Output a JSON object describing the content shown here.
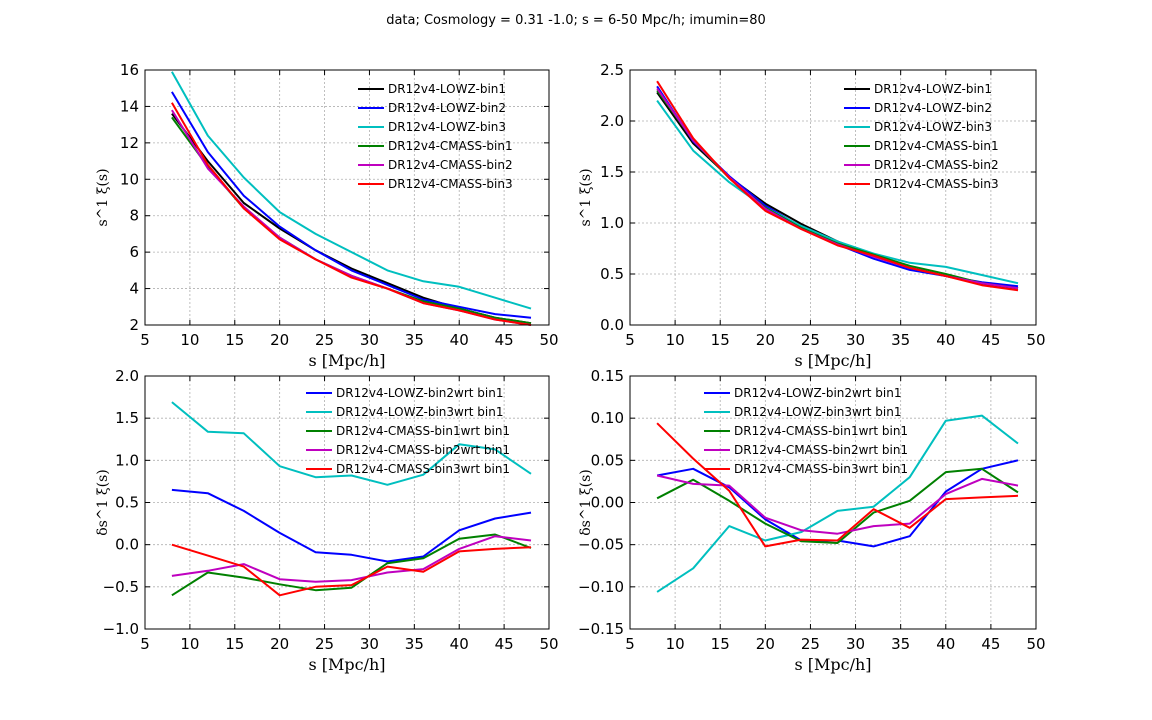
{
  "figure_title": "data; Cosmology = 0.31 -1.0; s = 6-50 Mpc/h; imumin=80",
  "chart_data": [
    {
      "type": "line",
      "panel": "top-left",
      "title": "",
      "xlabel": "s [Mpc/h]",
      "ylabel": "s^1 ξ(s)",
      "xlim": [
        5,
        50
      ],
      "ylim": [
        2,
        16
      ],
      "xticks": [
        "5",
        "10",
        "15",
        "20",
        "25",
        "30",
        "35",
        "40",
        "45",
        "50"
      ],
      "yticks": [
        "2",
        "4",
        "6",
        "8",
        "10",
        "12",
        "14",
        "16"
      ],
      "grid": true,
      "legend_position": "top-right",
      "x": [
        8,
        12,
        16,
        20,
        24,
        28,
        32,
        36,
        40,
        44,
        48
      ],
      "series": [
        {
          "name": "DR12v4-LOWZ-bin1",
          "color": "#000000",
          "values": [
            13.6,
            11.0,
            8.7,
            7.3,
            6.1,
            5.1,
            4.3,
            3.5,
            2.9,
            2.4,
            2.1
          ]
        },
        {
          "name": "DR12v4-LOWZ-bin2",
          "color": "#0000ff",
          "values": [
            14.8,
            11.5,
            9.1,
            7.4,
            6.1,
            5.0,
            4.2,
            3.4,
            3.0,
            2.6,
            2.4
          ]
        },
        {
          "name": "DR12v4-LOWZ-bin3",
          "color": "#00bfbf",
          "values": [
            15.9,
            12.4,
            10.1,
            8.2,
            7.0,
            6.0,
            5.0,
            4.4,
            4.1,
            3.5,
            2.9
          ]
        },
        {
          "name": "DR12v4-CMASS-bin1",
          "color": "#008000",
          "values": [
            13.4,
            10.7,
            8.4,
            6.8,
            5.6,
            4.7,
            4.0,
            3.3,
            2.9,
            2.4,
            2.1
          ]
        },
        {
          "name": "DR12v4-CMASS-bin2",
          "color": "#bf00bf",
          "values": [
            13.8,
            10.6,
            8.5,
            6.8,
            5.6,
            4.7,
            4.0,
            3.2,
            2.8,
            2.3,
            2.0
          ]
        },
        {
          "name": "DR12v4-CMASS-bin3",
          "color": "#ff0000",
          "values": [
            14.2,
            10.8,
            8.4,
            6.7,
            5.6,
            4.6,
            4.0,
            3.2,
            2.8,
            2.3,
            2.0
          ]
        }
      ]
    },
    {
      "type": "line",
      "panel": "top-right",
      "title": "",
      "xlabel": "s [Mpc/h]",
      "ylabel": "s^1 ξ(s)",
      "xlim": [
        5,
        50
      ],
      "ylim": [
        0,
        2.5
      ],
      "xticks": [
        "5",
        "10",
        "15",
        "20",
        "25",
        "30",
        "35",
        "40",
        "45",
        "50"
      ],
      "yticks": [
        "0.0",
        "0.5",
        "1.0",
        "1.5",
        "2.0",
        "2.5"
      ],
      "grid": true,
      "legend_position": "top-right",
      "x": [
        8,
        12,
        16,
        20,
        24,
        28,
        32,
        36,
        40,
        44,
        48
      ],
      "series": [
        {
          "name": "DR12v4-LOWZ-bin1",
          "color": "#000000",
          "values": [
            2.28,
            1.78,
            1.45,
            1.19,
            0.99,
            0.82,
            0.68,
            0.56,
            0.48,
            0.4,
            0.36
          ]
        },
        {
          "name": "DR12v4-LOWZ-bin2",
          "color": "#0000ff",
          "values": [
            2.34,
            1.8,
            1.46,
            1.17,
            0.96,
            0.79,
            0.65,
            0.54,
            0.48,
            0.42,
            0.38
          ]
        },
        {
          "name": "DR12v4-LOWZ-bin3",
          "color": "#00bfbf",
          "values": [
            2.2,
            1.71,
            1.4,
            1.15,
            0.97,
            0.82,
            0.7,
            0.61,
            0.57,
            0.49,
            0.41
          ]
        },
        {
          "name": "DR12v4-CMASS-bin1",
          "color": "#008000",
          "values": [
            2.3,
            1.81,
            1.44,
            1.15,
            0.95,
            0.8,
            0.69,
            0.58,
            0.5,
            0.41,
            0.36
          ]
        },
        {
          "name": "DR12v4-CMASS-bin2",
          "color": "#bf00bf",
          "values": [
            2.32,
            1.81,
            1.45,
            1.14,
            0.94,
            0.79,
            0.67,
            0.56,
            0.48,
            0.41,
            0.36
          ]
        },
        {
          "name": "DR12v4-CMASS-bin3",
          "color": "#ff0000",
          "values": [
            2.39,
            1.83,
            1.44,
            1.12,
            0.94,
            0.78,
            0.68,
            0.56,
            0.48,
            0.39,
            0.34
          ]
        }
      ]
    },
    {
      "type": "line",
      "panel": "bottom-left",
      "title": "",
      "xlabel": "s [Mpc/h]",
      "ylabel": "δs^1 ξ(s)",
      "xlim": [
        5,
        50
      ],
      "ylim": [
        -1.0,
        2.0
      ],
      "xticks": [
        "5",
        "10",
        "15",
        "20",
        "25",
        "30",
        "35",
        "40",
        "45",
        "50"
      ],
      "yticks": [
        "−1.0",
        "−0.5",
        "0.0",
        "0.5",
        "1.0",
        "1.5",
        "2.0"
      ],
      "grid": true,
      "legend_position": "top-right",
      "x": [
        8,
        12,
        16,
        20,
        24,
        28,
        32,
        36,
        40,
        44,
        48
      ],
      "series": [
        {
          "name": "DR12v4-LOWZ-bin2wrt bin1",
          "color": "#0000ff",
          "values": [
            0.65,
            0.61,
            0.4,
            0.14,
            -0.09,
            -0.12,
            -0.2,
            -0.14,
            0.17,
            0.31,
            0.38
          ]
        },
        {
          "name": "DR12v4-LOWZ-bin3wrt bin1",
          "color": "#00bfbf",
          "values": [
            1.69,
            1.34,
            1.32,
            0.93,
            0.8,
            0.82,
            0.71,
            0.83,
            1.19,
            1.13,
            0.84
          ]
        },
        {
          "name": "DR12v4-CMASS-bin1wrt bin1",
          "color": "#008000",
          "values": [
            -0.6,
            -0.33,
            -0.39,
            -0.47,
            -0.54,
            -0.51,
            -0.22,
            -0.16,
            0.07,
            0.12,
            -0.04
          ]
        },
        {
          "name": "DR12v4-CMASS-bin2wrt bin1",
          "color": "#bf00bf",
          "values": [
            -0.37,
            -0.31,
            -0.23,
            -0.41,
            -0.44,
            -0.42,
            -0.33,
            -0.29,
            -0.05,
            0.1,
            0.05
          ]
        },
        {
          "name": "DR12v4-CMASS-bin3wrt bin1",
          "color": "#ff0000",
          "values": [
            0.0,
            -0.13,
            -0.26,
            -0.6,
            -0.5,
            -0.48,
            -0.26,
            -0.32,
            -0.08,
            -0.05,
            -0.03
          ]
        }
      ]
    },
    {
      "type": "line",
      "panel": "bottom-right",
      "title": "",
      "xlabel": "s [Mpc/h]",
      "ylabel": "δs^1 ξ(s)",
      "xlim": [
        5,
        50
      ],
      "ylim": [
        -0.15,
        0.15
      ],
      "xticks": [
        "5",
        "10",
        "15",
        "20",
        "25",
        "30",
        "35",
        "40",
        "45",
        "50"
      ],
      "yticks": [
        "−0.15",
        "−0.10",
        "−0.05",
        "0.00",
        "0.05",
        "0.10",
        "0.15"
      ],
      "grid": true,
      "legend_position": "top-center",
      "x": [
        8,
        12,
        16,
        20,
        24,
        28,
        32,
        36,
        40,
        44,
        48
      ],
      "series": [
        {
          "name": "DR12v4-LOWZ-bin2wrt bin1",
          "color": "#0000ff",
          "values": [
            0.032,
            0.04,
            0.018,
            -0.02,
            -0.045,
            -0.045,
            -0.052,
            -0.04,
            0.013,
            0.04,
            0.05
          ]
        },
        {
          "name": "DR12v4-LOWZ-bin3wrt bin1",
          "color": "#00bfbf",
          "values": [
            -0.106,
            -0.078,
            -0.028,
            -0.045,
            -0.035,
            -0.01,
            -0.005,
            0.03,
            0.097,
            0.103,
            0.07
          ]
        },
        {
          "name": "DR12v4-CMASS-bin1wrt bin1",
          "color": "#008000",
          "values": [
            0.005,
            0.027,
            0.002,
            -0.025,
            -0.046,
            -0.048,
            -0.012,
            0.002,
            0.036,
            0.04,
            0.012
          ]
        },
        {
          "name": "DR12v4-CMASS-bin2wrt bin1",
          "color": "#bf00bf",
          "values": [
            0.032,
            0.022,
            0.02,
            -0.018,
            -0.033,
            -0.037,
            -0.028,
            -0.025,
            0.01,
            0.028,
            0.02
          ]
        },
        {
          "name": "DR12v4-CMASS-bin3wrt bin1",
          "color": "#ff0000",
          "values": [
            0.094,
            0.052,
            0.014,
            -0.052,
            -0.044,
            -0.045,
            -0.008,
            -0.03,
            0.004,
            0.006,
            0.008
          ]
        }
      ]
    }
  ]
}
